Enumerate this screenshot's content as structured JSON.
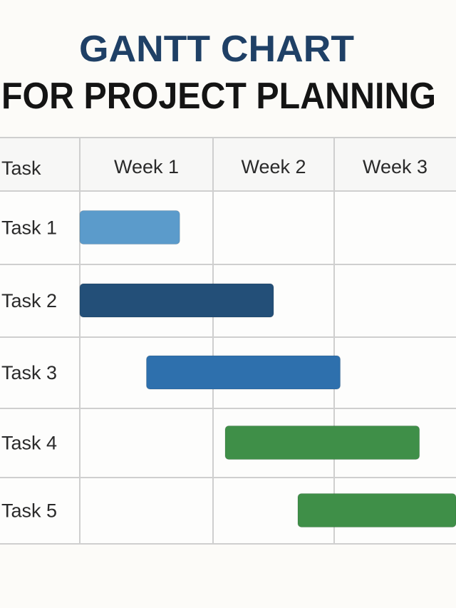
{
  "title_line1": "GANTT CHART",
  "title_line2": "FOR PROJECT PLANNING",
  "chart_data": {
    "type": "gantt",
    "header_label": "Task",
    "columns": [
      "Week 1",
      "Week 2",
      "Week 3"
    ],
    "tasks": [
      {
        "name": "Task 1",
        "start": 0,
        "end": 0.75,
        "color": "#5b9bcb"
      },
      {
        "name": "Task 2",
        "start": 0,
        "end": 1.5,
        "color": "#234f78"
      },
      {
        "name": "Task 3",
        "start": 0.5,
        "end": 2.05,
        "color": "#2e70ad"
      },
      {
        "name": "Task 4",
        "start": 1.1,
        "end": 2.7,
        "color": "#3f8f48"
      },
      {
        "name": "Task 5",
        "start": 1.7,
        "end": 3.2,
        "color": "#3f8f48"
      }
    ],
    "x_unit": "weeks",
    "grid": true
  }
}
